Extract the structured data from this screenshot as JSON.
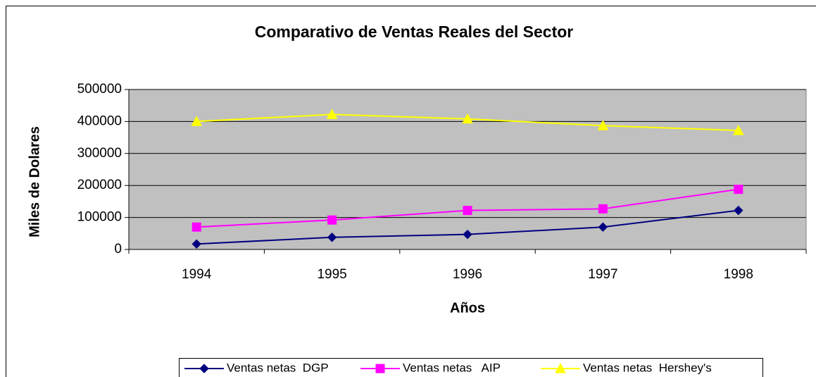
{
  "chart_data": {
    "type": "line",
    "title": "Comparativo de Ventas Reales del Sector",
    "x_label": "Años",
    "y_label": "Miles de Dolares",
    "categories": [
      "1994",
      "1995",
      "1996",
      "1997",
      "1998"
    ],
    "series": [
      {
        "name": "Ventas netas  DGP",
        "color": "#000080",
        "values": [
          17000,
          38000,
          47000,
          70000,
          122000
        ]
      },
      {
        "name": "Ventas netas   AIP",
        "color": "#ff00ff",
        "values": [
          70000,
          92000,
          122000,
          127000,
          188000
        ]
      },
      {
        "name": "Ventas netas  Hershey's",
        "color": "#ffff00",
        "values": [
          400000,
          422000,
          408000,
          387000,
          372000
        ]
      }
    ],
    "ylim": [
      0,
      500000
    ],
    "yticks": [
      0,
      100000,
      200000,
      300000,
      400000,
      500000
    ],
    "grid": true,
    "legend": "bottom"
  }
}
